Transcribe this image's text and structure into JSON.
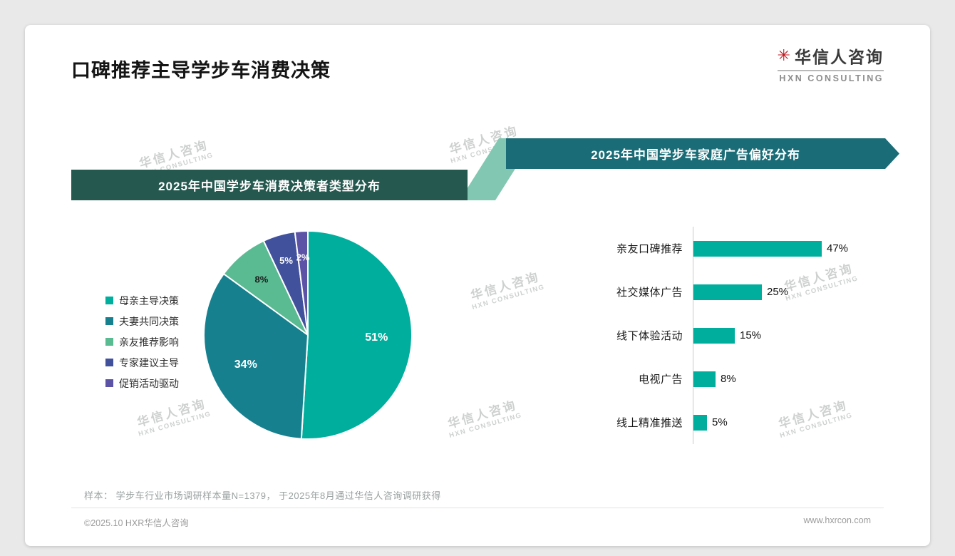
{
  "page": {
    "title": "口碑推荐主导学步车消费决策",
    "brand": {
      "name": "华信人咨询",
      "sub": "HXN CONSULTING",
      "mark_icon": "asterisk-star",
      "mark_color": "#c0151c"
    },
    "watermark": {
      "line1": "华信人咨询",
      "line2": "HXN CONSULTING"
    },
    "sample_note": "样本： 学步车行业市场调研样本量N=1379， 于2025年8月通过华信人咨询调研获得",
    "footer": {
      "copyright": "©2025.10 HXR华信人咨询",
      "website": "www.hxrcon.com"
    }
  },
  "colors": {
    "banner_left": "#25584f",
    "banner_right": "#1a6c77",
    "banner_connector": "#82c7b1",
    "accent_teal": "#00ae9e"
  },
  "chart_data": [
    {
      "type": "pie",
      "title": "2025年中国学步车消费决策者类型分布",
      "labels": [
        "母亲主导决策",
        "夫妻共同决策",
        "亲友推荐影响",
        "专家建议主导",
        "促销活动驱动"
      ],
      "values": [
        51,
        34,
        8,
        5,
        2
      ],
      "unit": "%",
      "colors": [
        "#00ae9e",
        "#17808f",
        "#5aba92",
        "#41519b",
        "#5c53a6"
      ],
      "label_colors": [
        "#ffffff",
        "#ffffff",
        "#1c1c1c",
        "#ffffff",
        "#ffffff"
      ],
      "legend_position": "left",
      "start_angle": "top",
      "direction": "clockwise"
    },
    {
      "type": "bar",
      "orientation": "horizontal",
      "title": "2025年中国学步车家庭广告偏好分布",
      "categories": [
        "亲友口碑推荐",
        "社交媒体广告",
        "线下体验活动",
        "电视广告",
        "线上精准推送"
      ],
      "values": [
        47,
        25,
        15,
        8,
        5
      ],
      "unit": "%",
      "bar_color": "#00ae9e",
      "xlim": [
        0,
        50
      ],
      "grid": false,
      "value_labels": "outside-right"
    }
  ]
}
